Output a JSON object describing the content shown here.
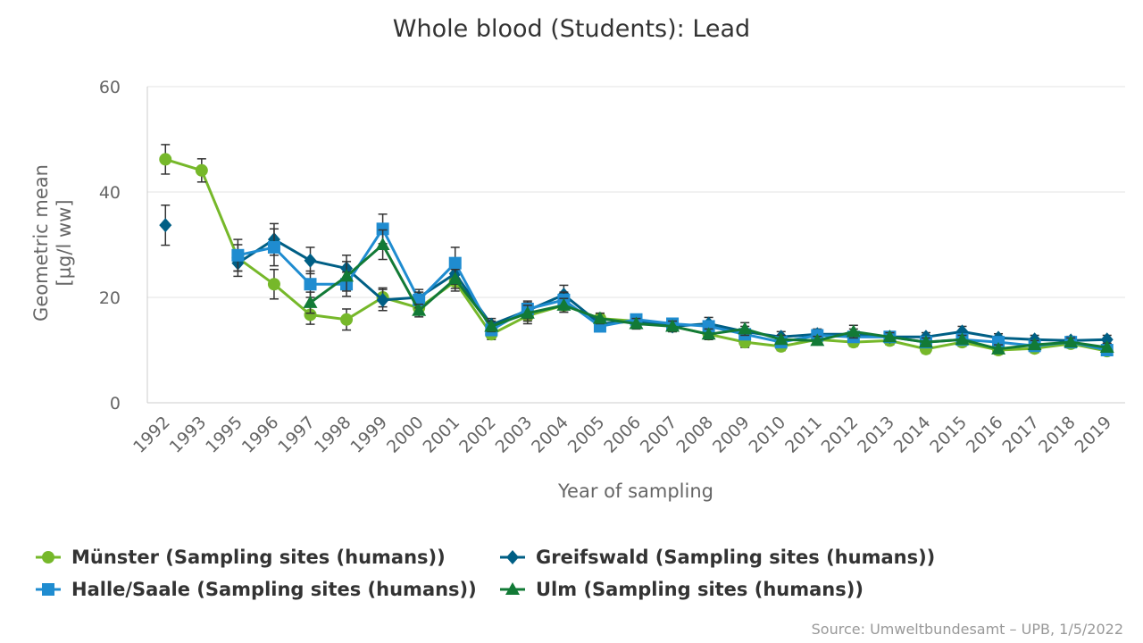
{
  "chart_data": {
    "type": "line",
    "title": "Whole blood (Students): Lead",
    "xlabel": "Year of sampling",
    "ylabel_line1": "Geometric mean",
    "ylabel_line2": "[µg/l ww]",
    "ylim": [
      0,
      60
    ],
    "yticks": [
      0,
      20,
      40,
      60
    ],
    "grid": true,
    "legend_position": "bottom",
    "categories": [
      "1992",
      "1993",
      "1995",
      "1996",
      "1997",
      "1998",
      "1999",
      "2000",
      "2001",
      "2002",
      "2003",
      "2004",
      "2005",
      "2006",
      "2007",
      "2008",
      "2009",
      "2010",
      "2011",
      "2012",
      "2013",
      "2014",
      "2015",
      "2016",
      "2017",
      "2018",
      "2019"
    ],
    "series": [
      {
        "name": "Münster (Sampling sites (humans))",
        "color": "#76b82a",
        "marker": "circle",
        "values": [
          46.2,
          44.1,
          27.5,
          22.5,
          16.7,
          15.8,
          20.0,
          18.0,
          23.0,
          13.0,
          16.5,
          18.5,
          16.0,
          15.5,
          14.5,
          13.0,
          11.5,
          10.7,
          12.0,
          11.5,
          11.8,
          10.2,
          11.5,
          10.0,
          10.3,
          11.2,
          9.8
        ],
        "err": [
          2.8,
          2.2,
          2.5,
          2.8,
          1.8,
          2.0,
          1.8,
          1.2,
          1.8,
          1.0,
          1.5,
          1.3,
          1.0,
          1.0,
          1.0,
          1.0,
          1.0,
          0.8,
          0.8,
          0.8,
          0.8,
          0.8,
          0.8,
          0.8,
          0.8,
          0.8,
          0.8
        ]
      },
      {
        "name": "Greifswald (Sampling sites (humans))",
        "color": "#005f85",
        "marker": "diamond",
        "values": [
          33.7,
          null,
          26.5,
          31.0,
          27.0,
          25.5,
          19.5,
          20.0,
          24.5,
          14.8,
          17.5,
          20.5,
          15.0,
          15.5,
          14.5,
          15.0,
          13.5,
          12.5,
          13.0,
          13.0,
          12.5,
          12.5,
          13.5,
          12.3,
          12.0,
          11.8,
          12.0
        ],
        "err": [
          3.8,
          null,
          2.5,
          3.0,
          2.5,
          2.5,
          2.0,
          1.5,
          2.0,
          1.2,
          1.5,
          1.8,
          1.0,
          1.0,
          1.0,
          1.2,
          1.0,
          1.0,
          1.0,
          1.0,
          0.8,
          0.8,
          1.0,
          0.8,
          0.8,
          0.8,
          0.8
        ]
      },
      {
        "name": "Halle/Saale (Sampling sites (humans))",
        "color": "#1f8cd0",
        "marker": "square",
        "values": [
          null,
          null,
          28.0,
          29.5,
          22.5,
          22.5,
          33.0,
          19.5,
          26.5,
          13.8,
          17.8,
          19.5,
          14.5,
          15.8,
          15.0,
          14.5,
          13.0,
          11.5,
          12.8,
          12.5,
          12.5,
          11.5,
          12.0,
          11.5,
          10.8,
          11.5,
          10.0
        ],
        "err": [
          null,
          null,
          3.0,
          3.5,
          2.5,
          2.3,
          2.8,
          1.5,
          3.0,
          1.0,
          1.5,
          1.5,
          1.0,
          1.0,
          1.0,
          1.0,
          1.0,
          0.8,
          0.8,
          0.8,
          0.8,
          0.8,
          0.8,
          0.8,
          0.8,
          0.8,
          0.8
        ]
      },
      {
        "name": "Ulm (Sampling sites (humans))",
        "color": "#127a36",
        "marker": "triangle",
        "values": [
          null,
          null,
          null,
          null,
          19.0,
          24.0,
          30.0,
          17.5,
          23.5,
          14.5,
          17.0,
          18.5,
          16.0,
          15.0,
          14.5,
          13.0,
          14.0,
          12.0,
          11.8,
          13.5,
          12.5,
          11.5,
          12.0,
          10.2,
          11.0,
          11.5,
          10.5
        ],
        "err": [
          null,
          null,
          null,
          null,
          2.0,
          2.8,
          2.8,
          1.2,
          1.8,
          1.0,
          1.5,
          1.3,
          1.0,
          1.0,
          1.0,
          1.0,
          1.2,
          0.8,
          0.8,
          1.2,
          0.8,
          0.8,
          0.8,
          0.8,
          0.8,
          0.8,
          0.8
        ]
      }
    ]
  },
  "source_text": "Source: Umweltbundesamt – UPB, 1/5/2022"
}
